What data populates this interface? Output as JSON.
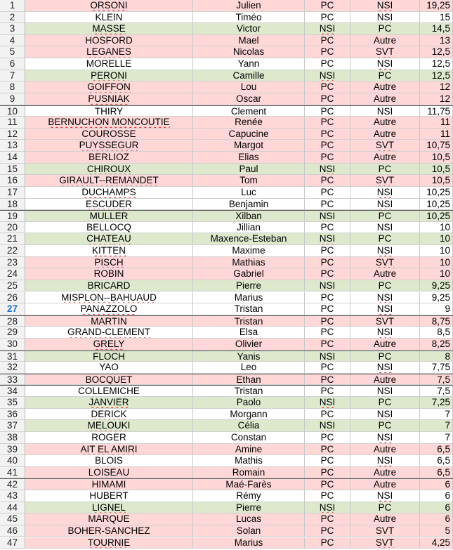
{
  "spreadsheet": {
    "rows": [
      {
        "n": "1",
        "name": "ORSONI",
        "first": "Julien",
        "s1": "PC",
        "s2": "NSI",
        "score": "19,25",
        "bg": "red"
      },
      {
        "n": "2",
        "name": "KLEIN",
        "first": "Timéo",
        "s1": "PC",
        "s2": "NSI",
        "score": "15",
        "bg": "white"
      },
      {
        "n": "3",
        "name": "MASSE",
        "first": "Victor",
        "s1": "NSI",
        "s2": "PC",
        "score": "14,5",
        "bg": "green"
      },
      {
        "n": "4",
        "name": "HOSFORD",
        "first": "Mael",
        "s1": "PC",
        "s2": "Autre",
        "score": "13",
        "bg": "red"
      },
      {
        "n": "5",
        "name": "LEGANES",
        "first": "Nicolas",
        "s1": "PC",
        "s2": "SVT",
        "score": "12,5",
        "bg": "red"
      },
      {
        "n": "6",
        "name": "MORELLE",
        "first": "Yann",
        "s1": "PC",
        "s2": "NSI",
        "score": "12,5",
        "bg": "white"
      },
      {
        "n": "7",
        "name": "PERONI",
        "first": "Camille",
        "s1": "NSI",
        "s2": "PC",
        "score": "12,5",
        "bg": "green"
      },
      {
        "n": "8",
        "name": "GOIFFON",
        "first": "Lou",
        "s1": "PC",
        "s2": "Autre",
        "score": "12",
        "bg": "red"
      },
      {
        "n": "9",
        "name": "PUSNIAK",
        "first": "Oscar",
        "s1": "PC",
        "s2": "Autre",
        "score": "12",
        "bg": "red"
      },
      {
        "n": "10",
        "name": "THIRY",
        "first": "Clement",
        "s1": "PC",
        "s2": "NSI",
        "score": "11,75",
        "bg": "white"
      },
      {
        "n": "11",
        "name": "BERNUCHON MONCOUTIE",
        "first": "Renée",
        "s1": "PC",
        "s2": "Autre",
        "score": "11",
        "bg": "red"
      },
      {
        "n": "12",
        "name": "COUROSSE",
        "first": "Capucine",
        "s1": "PC",
        "s2": "Autre",
        "score": "11",
        "bg": "red"
      },
      {
        "n": "13",
        "name": "PUYSSEGUR",
        "first": "Margot",
        "s1": "PC",
        "s2": "SVT",
        "score": "10,75",
        "bg": "red"
      },
      {
        "n": "14",
        "name": "BERLIOZ",
        "first": "Elias",
        "s1": "PC",
        "s2": "Autre",
        "score": "10,5",
        "bg": "red"
      },
      {
        "n": "15",
        "name": "CHIROUX",
        "first": "Paul",
        "s1": "NSI",
        "s2": "PC",
        "score": "10,5",
        "bg": "green"
      },
      {
        "n": "16",
        "name": "GIRAULT--REMANDET",
        "first": "Tom",
        "s1": "PC",
        "s2": "SVT",
        "score": "10,5",
        "bg": "red"
      },
      {
        "n": "17",
        "name": "DUCHAMPS",
        "first": "Luc",
        "s1": "PC",
        "s2": "NSI",
        "score": "10,25",
        "bg": "white"
      },
      {
        "n": "18",
        "name": "ESCUDER",
        "first": "Benjamin",
        "s1": "PC",
        "s2": "NSI",
        "score": "10,25",
        "bg": "white"
      },
      {
        "n": "19",
        "name": "MULLER",
        "first": "Xilban",
        "s1": "NSI",
        "s2": "PC",
        "score": "10,25",
        "bg": "green"
      },
      {
        "n": "20",
        "name": "BELLOCQ",
        "first": "Jillian",
        "s1": "PC",
        "s2": "NSI",
        "score": "10",
        "bg": "white"
      },
      {
        "n": "21",
        "name": "CHATEAU",
        "first": "Maxence-Esteban",
        "s1": "NSI",
        "s2": "PC",
        "score": "10",
        "bg": "green"
      },
      {
        "n": "22",
        "name": "KITTEN",
        "first": "Maxime",
        "s1": "PC",
        "s2": "NSI",
        "score": "10",
        "bg": "white"
      },
      {
        "n": "23",
        "name": "PISCH",
        "first": "Mathias",
        "s1": "PC",
        "s2": "SVT",
        "score": "10",
        "bg": "red"
      },
      {
        "n": "24",
        "name": "ROBIN",
        "first": "Gabriel",
        "s1": "PC",
        "s2": "Autre",
        "score": "10",
        "bg": "red"
      },
      {
        "n": "25",
        "name": "BRICARD",
        "first": "Pierre",
        "s1": "NSI",
        "s2": "PC",
        "score": "9,25",
        "bg": "green"
      },
      {
        "n": "26",
        "name": "MISPLON--BAHUAUD",
        "first": "Marius",
        "s1": "PC",
        "s2": "NSI",
        "score": "9,25",
        "bg": "white"
      },
      {
        "n": "27",
        "name": "PANAZZOLO",
        "first": "Tristan",
        "s1": "PC",
        "s2": "NSI",
        "score": "9",
        "bg": "white"
      },
      {
        "n": "28",
        "name": "MARTIN",
        "first": "Tristan",
        "s1": "PC",
        "s2": "SVT",
        "score": "8,75",
        "bg": "red"
      },
      {
        "n": "29",
        "name": "GRAND-CLEMENT",
        "first": "Elsa",
        "s1": "PC",
        "s2": "NSI",
        "score": "8,5",
        "bg": "white"
      },
      {
        "n": "30",
        "name": "GRELY",
        "first": "Olivier",
        "s1": "PC",
        "s2": "Autre",
        "score": "8,25",
        "bg": "red"
      },
      {
        "n": "31",
        "name": "FLOCH",
        "first": "Yanis",
        "s1": "NSI",
        "s2": "PC",
        "score": "8",
        "bg": "green"
      },
      {
        "n": "32",
        "name": "YAO",
        "first": "Leo",
        "s1": "PC",
        "s2": "NSI",
        "score": "7,75",
        "bg": "white"
      },
      {
        "n": "33",
        "name": "BOCQUET",
        "first": "Ethan",
        "s1": "PC",
        "s2": "Autre",
        "score": "7,5",
        "bg": "red"
      },
      {
        "n": "34",
        "name": "COLLEMICHE",
        "first": "Tristan",
        "s1": "PC",
        "s2": "NSI",
        "score": "7,5",
        "bg": "white"
      },
      {
        "n": "35",
        "name": "JANVIER",
        "first": "Paolo",
        "s1": "NSI",
        "s2": "PC",
        "score": "7,25",
        "bg": "green"
      },
      {
        "n": "36",
        "name": "DERICK",
        "first": "Morgann",
        "s1": "PC",
        "s2": "NSI",
        "score": "7",
        "bg": "white"
      },
      {
        "n": "37",
        "name": "MELOUKI",
        "first": "Célia",
        "s1": "NSI",
        "s2": "PC",
        "score": "7",
        "bg": "green"
      },
      {
        "n": "38",
        "name": "ROGER",
        "first": "Constan",
        "s1": "PC",
        "s2": "NSI",
        "score": "7",
        "bg": "white"
      },
      {
        "n": "39",
        "name": "AIT EL AMIRI",
        "first": "Amine",
        "s1": "PC",
        "s2": "Autre",
        "score": "6,5",
        "bg": "red"
      },
      {
        "n": "40",
        "name": "BLOIS",
        "first": "Mathis",
        "s1": "PC",
        "s2": "NSI",
        "score": "6,5",
        "bg": "white"
      },
      {
        "n": "41",
        "name": "LOISEAU",
        "first": "Romain",
        "s1": "PC",
        "s2": "Autre",
        "score": "6,5",
        "bg": "red"
      },
      {
        "n": "42",
        "name": "HIMAMI",
        "first": "Maé-Farès",
        "s1": "PC",
        "s2": "Autre",
        "score": "6",
        "bg": "red"
      },
      {
        "n": "43",
        "name": "HUBERT",
        "first": "Rémy",
        "s1": "PC",
        "s2": "NSI",
        "score": "6",
        "bg": "white"
      },
      {
        "n": "44",
        "name": "LIGNEL",
        "first": "Pierre",
        "s1": "NSI",
        "s2": "PC",
        "score": "6",
        "bg": "green"
      },
      {
        "n": "45",
        "name": "MARQUE",
        "first": "Lucas",
        "s1": "PC",
        "s2": "Autre",
        "score": "6",
        "bg": "red"
      },
      {
        "n": "46",
        "name": "BOHER-SANCHEZ",
        "first": "Solan",
        "s1": "PC",
        "s2": "SVT",
        "score": "5",
        "bg": "red"
      },
      {
        "n": "47",
        "name": "TOURNIE",
        "first": "Marius",
        "s1": "PC",
        "s2": "SVT",
        "score": "4,25",
        "bg": "red"
      }
    ],
    "active_row": "27",
    "colors": {
      "green": "#dde8cd",
      "red": "#ffd7d7",
      "white": "#ffffff",
      "active": "#1f6fd1"
    }
  }
}
